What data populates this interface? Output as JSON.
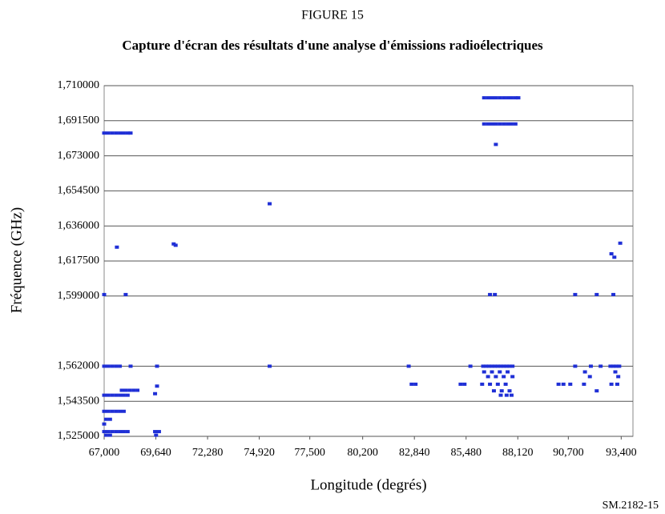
{
  "chart_data": {
    "type": "scatter",
    "figure_label": "FIGURE 15",
    "title": "Capture d'écran des résultats d'une analyse d'émissions radioélectriques",
    "xlabel": "Longitude (degrés)",
    "ylabel": "Fréquence (GHz)",
    "source_note": "SM.2182-15",
    "xlim": [
      67000,
      94000
    ],
    "ylim": [
      1.525,
      1.71
    ],
    "xticks": [
      {
        "value": 67000,
        "label": "67,000"
      },
      {
        "value": 69640,
        "label": "69,640"
      },
      {
        "value": 72280,
        "label": "72,280"
      },
      {
        "value": 74920,
        "label": "74,920"
      },
      {
        "value": 77500,
        "label": "77,500"
      },
      {
        "value": 80200,
        "label": "80,200"
      },
      {
        "value": 82840,
        "label": "82,840"
      },
      {
        "value": 85480,
        "label": "85,480"
      },
      {
        "value": 88120,
        "label": "88,120"
      },
      {
        "value": 90700,
        "label": "90,700"
      },
      {
        "value": 93400,
        "label": "93,400"
      }
    ],
    "yticks": [
      {
        "value": 1.525,
        "label": "1,525000"
      },
      {
        "value": 1.5435,
        "label": "1,543500"
      },
      {
        "value": 1.562,
        "label": "1,562000"
      },
      {
        "value": 1.599,
        "label": "1,599000"
      },
      {
        "value": 1.6175,
        "label": "1,617500"
      },
      {
        "value": 1.636,
        "label": "1,636000"
      },
      {
        "value": 1.6545,
        "label": "1,654500"
      },
      {
        "value": 1.673,
        "label": "1,673000"
      },
      {
        "value": 1.6915,
        "label": "1,691500"
      },
      {
        "value": 1.71,
        "label": "1,710000"
      }
    ],
    "grid": true,
    "series": [
      {
        "color": "#1f2fd6",
        "x": [
          86400,
          86600,
          86800,
          87000,
          87200,
          87400,
          87600,
          87800,
          88000,
          88150,
          86400,
          86600,
          86800,
          87000,
          87200,
          87400,
          87600,
          87800,
          88000,
          87000,
          67000,
          67200,
          67400,
          67600,
          67800,
          68000,
          68200,
          68350,
          75450,
          67650,
          70550,
          70650,
          67000,
          68100,
          86700,
          86950,
          91050,
          92150,
          93000,
          92900,
          93050,
          93350,
          67000,
          67200,
          67400,
          67600,
          67800,
          68350,
          69700,
          75450,
          82550,
          85700,
          86350,
          86500,
          86650,
          86800,
          86950,
          87100,
          87250,
          87400,
          87550,
          87700,
          87850,
          91050,
          91850,
          92350,
          92850,
          93000,
          93150,
          93300,
          86400,
          86800,
          87200,
          87600,
          91550,
          93100,
          86600,
          87000,
          87400,
          87850,
          91800,
          93250,
          82700,
          82900,
          85200,
          85400,
          86300,
          86700,
          87100,
          87500,
          90200,
          90450,
          90800,
          91500,
          92900,
          93200,
          86900,
          87300,
          87700,
          92150,
          87250,
          87550,
          87800,
          67900,
          68100,
          68300,
          68500,
          68700,
          67000,
          67200,
          67400,
          67600,
          67800,
          68000,
          68200,
          69600,
          69700,
          67000,
          67200,
          67400,
          67600,
          67800,
          68000,
          67100,
          67300,
          67000,
          67000,
          67200,
          67400,
          67600,
          67800,
          68000,
          68200,
          69600,
          69800,
          67100,
          67300,
          69650
        ],
        "values": [
          1.7036,
          1.7036,
          1.7036,
          1.7036,
          1.7036,
          1.7036,
          1.7036,
          1.7036,
          1.7036,
          1.7036,
          1.6898,
          1.6898,
          1.6898,
          1.6898,
          1.6898,
          1.6898,
          1.6898,
          1.6898,
          1.6898,
          1.679,
          1.685,
          1.685,
          1.685,
          1.685,
          1.685,
          1.685,
          1.685,
          1.685,
          1.6477,
          1.6248,
          1.6265,
          1.6258,
          1.5998,
          1.5998,
          1.5998,
          1.5998,
          1.5998,
          1.5998,
          1.5998,
          1.6213,
          1.6195,
          1.6269,
          1.562,
          1.562,
          1.562,
          1.562,
          1.562,
          1.562,
          1.562,
          1.562,
          1.562,
          1.562,
          1.562,
          1.562,
          1.562,
          1.562,
          1.562,
          1.562,
          1.562,
          1.562,
          1.562,
          1.562,
          1.562,
          1.562,
          1.562,
          1.562,
          1.562,
          1.562,
          1.562,
          1.562,
          1.559,
          1.559,
          1.559,
          1.559,
          1.559,
          1.559,
          1.5565,
          1.5565,
          1.5565,
          1.5565,
          1.5565,
          1.5565,
          1.5525,
          1.5525,
          1.5525,
          1.5525,
          1.5525,
          1.5525,
          1.5525,
          1.5525,
          1.5525,
          1.5525,
          1.5525,
          1.5525,
          1.5525,
          1.5525,
          1.549,
          1.549,
          1.549,
          1.549,
          1.5467,
          1.5467,
          1.5467,
          1.5493,
          1.5493,
          1.5493,
          1.5493,
          1.5493,
          1.5467,
          1.5467,
          1.5467,
          1.5467,
          1.5467,
          1.5467,
          1.5467,
          1.5475,
          1.5515,
          1.5382,
          1.5382,
          1.5382,
          1.5382,
          1.5382,
          1.5382,
          1.534,
          1.534,
          1.5315,
          1.5275,
          1.5275,
          1.5275,
          1.5275,
          1.5275,
          1.5275,
          1.5275,
          1.5275,
          1.5275,
          1.5256,
          1.5256,
          1.5256
        ]
      }
    ]
  }
}
